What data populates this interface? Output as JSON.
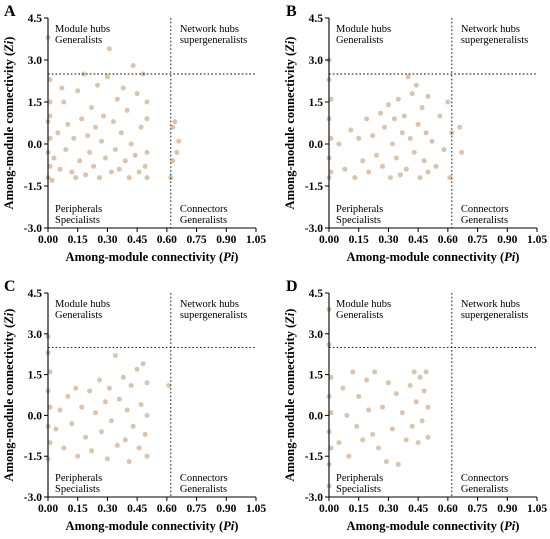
{
  "colors": {
    "point": "#dcc3ad",
    "axis": "#000000"
  },
  "chart_data": [
    {
      "type": "scatter",
      "panel": "A",
      "xlabel": "Among-module connectivity (Pi)",
      "ylabel": "Among-module connectivity (Zi)",
      "xlim": [
        0,
        1.05
      ],
      "ylim": [
        -3.0,
        4.5
      ],
      "xticks": [
        "0.00",
        "0.15",
        "0.30",
        "0.45",
        "0.60",
        "0.75",
        "0.90",
        "1.05"
      ],
      "yticks": [
        "-3.0",
        "-1.5",
        "0.0",
        "1.5",
        "3.0",
        "4.5"
      ],
      "thresholds": {
        "pi": 0.62,
        "zi": 2.5
      },
      "quadrants": {
        "top_left": [
          "Module hubs",
          "Generalists"
        ],
        "top_right": [
          "Network hubs",
          "supergeneralists"
        ],
        "bottom_left": [
          "Peripherals",
          "Specialists"
        ],
        "bottom_right": [
          "Connectors",
          "Generalists"
        ]
      },
      "points": [
        [
          0,
          3.8
        ],
        [
          0.01,
          2.3
        ],
        [
          0.01,
          1.5
        ],
        [
          0,
          0.8
        ],
        [
          0.01,
          0.2
        ],
        [
          0,
          -0.3
        ],
        [
          0.01,
          -0.8
        ],
        [
          0,
          -1.2
        ],
        [
          0.02,
          -1.3
        ],
        [
          0.01,
          1.0
        ],
        [
          0.03,
          -0.5
        ],
        [
          0.05,
          0.4
        ],
        [
          0.06,
          -0.9
        ],
        [
          0.08,
          1.5
        ],
        [
          0.09,
          -0.2
        ],
        [
          0.1,
          0.7
        ],
        [
          0.12,
          -1.0
        ],
        [
          0.13,
          0.2
        ],
        [
          0.15,
          1.9
        ],
        [
          0.16,
          -0.6
        ],
        [
          0.17,
          0.9
        ],
        [
          0.18,
          2.5
        ],
        [
          0.19,
          -1.1
        ],
        [
          0.2,
          0.3
        ],
        [
          0.21,
          -0.3
        ],
        [
          0.22,
          1.3
        ],
        [
          0.23,
          -0.8
        ],
        [
          0.24,
          0.6
        ],
        [
          0.25,
          2.1
        ],
        [
          0.26,
          -1.2
        ],
        [
          0.27,
          0.1
        ],
        [
          0.28,
          1.0
        ],
        [
          0.29,
          -0.5
        ],
        [
          0.3,
          2.4
        ],
        [
          0.31,
          3.4
        ],
        [
          0.32,
          -1.0
        ],
        [
          0.33,
          0.8
        ],
        [
          0.34,
          -0.2
        ],
        [
          0.35,
          1.6
        ],
        [
          0.36,
          -0.9
        ],
        [
          0.37,
          0.4
        ],
        [
          0.38,
          2.0
        ],
        [
          0.39,
          -0.6
        ],
        [
          0.4,
          1.2
        ],
        [
          0.41,
          -1.2
        ],
        [
          0.42,
          0.0
        ],
        [
          0.43,
          2.8
        ],
        [
          0.44,
          -0.4
        ],
        [
          0.45,
          1.8
        ],
        [
          0.46,
          -1.0
        ],
        [
          0.47,
          0.6
        ],
        [
          0.48,
          2.5
        ],
        [
          0.49,
          -0.8
        ],
        [
          0.5,
          0.9
        ],
        [
          0.5,
          -0.3
        ],
        [
          0.5,
          1.5
        ],
        [
          0.5,
          -1.2
        ],
        [
          0.63,
          0.6
        ],
        [
          0.64,
          0.8
        ],
        [
          0.65,
          -0.3
        ],
        [
          0.66,
          0.1
        ],
        [
          0.62,
          -1.2
        ],
        [
          0.63,
          -0.6
        ],
        [
          0.14,
          -1.2
        ],
        [
          0.07,
          2.0
        ]
      ]
    },
    {
      "type": "scatter",
      "panel": "B",
      "xlabel": "Among-module connectivity (Pi)",
      "ylabel": "Among-module connectivity (Zi)",
      "xlim": [
        0,
        1.05
      ],
      "ylim": [
        -3.0,
        4.5
      ],
      "xticks": [
        "0.00",
        "0.15",
        "0.30",
        "0.45",
        "0.60",
        "0.75",
        "0.90",
        "1.05"
      ],
      "yticks": [
        "-3.0",
        "-1.5",
        "0.0",
        "1.5",
        "3.0",
        "4.5"
      ],
      "thresholds": {
        "pi": 0.62,
        "zi": 2.5
      },
      "quadrants": {
        "top_left": [
          "Module hubs",
          "Generalists"
        ],
        "top_right": [
          "Network hubs",
          "supergeneralists"
        ],
        "bottom_left": [
          "Peripherals",
          "Specialists"
        ],
        "bottom_right": [
          "Connectors",
          "Generalists"
        ]
      },
      "points": [
        [
          0,
          3.0
        ],
        [
          0,
          2.3
        ],
        [
          0.01,
          1.6
        ],
        [
          0,
          0.9
        ],
        [
          0.01,
          0.2
        ],
        [
          0,
          -0.5
        ],
        [
          0.01,
          -1.0
        ],
        [
          0,
          -1.2
        ],
        [
          0.05,
          0.0
        ],
        [
          0.08,
          -0.9
        ],
        [
          0.11,
          0.5
        ],
        [
          0.13,
          -1.2
        ],
        [
          0.15,
          0.2
        ],
        [
          0.17,
          -0.6
        ],
        [
          0.19,
          0.9
        ],
        [
          0.2,
          -1.0
        ],
        [
          0.22,
          0.3
        ],
        [
          0.24,
          -0.4
        ],
        [
          0.26,
          1.1
        ],
        [
          0.27,
          -0.8
        ],
        [
          0.28,
          0.6
        ],
        [
          0.3,
          1.4
        ],
        [
          0.31,
          -1.2
        ],
        [
          0.32,
          0.0
        ],
        [
          0.33,
          0.9
        ],
        [
          0.34,
          -0.5
        ],
        [
          0.35,
          1.6
        ],
        [
          0.36,
          -1.1
        ],
        [
          0.37,
          0.4
        ],
        [
          0.38,
          1.0
        ],
        [
          0.39,
          -0.9
        ],
        [
          0.4,
          2.4
        ],
        [
          0.41,
          0.2
        ],
        [
          0.42,
          1.8
        ],
        [
          0.43,
          -0.3
        ],
        [
          0.44,
          2.1
        ],
        [
          0.45,
          0.7
        ],
        [
          0.46,
          -1.2
        ],
        [
          0.47,
          1.3
        ],
        [
          0.48,
          -0.6
        ],
        [
          0.49,
          0.4
        ],
        [
          0.5,
          1.7
        ],
        [
          0.5,
          -1.0
        ],
        [
          0.52,
          0.1
        ],
        [
          0.54,
          -0.8
        ],
        [
          0.56,
          1.0
        ],
        [
          0.58,
          -0.2
        ],
        [
          0.6,
          1.5
        ],
        [
          0.61,
          -1.2
        ],
        [
          0.62,
          0.4
        ],
        [
          0.66,
          0.6
        ],
        [
          0.67,
          -0.3
        ]
      ]
    },
    {
      "type": "scatter",
      "panel": "C",
      "xlabel": "Among-module connectivity (Pi)",
      "ylabel": "Among-module connectivity (Zi)",
      "xlim": [
        0,
        1.05
      ],
      "ylim": [
        -3.0,
        4.5
      ],
      "xticks": [
        "0.00",
        "0.15",
        "0.30",
        "0.45",
        "0.60",
        "0.75",
        "0.90",
        "1.05"
      ],
      "yticks": [
        "-3.0",
        "-1.5",
        "0.0",
        "1.5",
        "3.0",
        "4.5"
      ],
      "thresholds": {
        "pi": 0.62,
        "zi": 2.5
      },
      "quadrants": {
        "top_left": [
          "Module hubs",
          "Generalists"
        ],
        "top_right": [
          "Network hubs",
          "supergeneralists"
        ],
        "bottom_left": [
          "Peripherals",
          "Specialists"
        ],
        "bottom_right": [
          "Connectors",
          "Generalists"
        ]
      },
      "points": [
        [
          0,
          2.9
        ],
        [
          0,
          2.3
        ],
        [
          0.01,
          1.6
        ],
        [
          0,
          0.9
        ],
        [
          0.01,
          0.3
        ],
        [
          0,
          -0.4
        ],
        [
          0.01,
          -1.0
        ],
        [
          0,
          -1.6
        ],
        [
          0.04,
          -0.5
        ],
        [
          0.06,
          0.2
        ],
        [
          0.08,
          -1.2
        ],
        [
          0.1,
          0.7
        ],
        [
          0.12,
          -0.3
        ],
        [
          0.14,
          1.0
        ],
        [
          0.15,
          -1.5
        ],
        [
          0.17,
          0.3
        ],
        [
          0.19,
          -0.8
        ],
        [
          0.21,
          0.9
        ],
        [
          0.22,
          -1.3
        ],
        [
          0.24,
          0.1
        ],
        [
          0.26,
          1.3
        ],
        [
          0.27,
          -0.6
        ],
        [
          0.29,
          0.5
        ],
        [
          0.3,
          -1.6
        ],
        [
          0.31,
          1.0
        ],
        [
          0.32,
          -0.2
        ],
        [
          0.34,
          2.2
        ],
        [
          0.35,
          -1.1
        ],
        [
          0.36,
          0.6
        ],
        [
          0.38,
          1.4
        ],
        [
          0.39,
          -0.9
        ],
        [
          0.4,
          0.2
        ],
        [
          0.41,
          -1.7
        ],
        [
          0.42,
          1.1
        ],
        [
          0.43,
          -0.4
        ],
        [
          0.45,
          1.7
        ],
        [
          0.46,
          -1.2
        ],
        [
          0.47,
          0.4
        ],
        [
          0.48,
          1.9
        ],
        [
          0.49,
          -0.7
        ],
        [
          0.5,
          1.2
        ],
        [
          0.5,
          -1.5
        ],
        [
          0.5,
          0.0
        ],
        [
          0.61,
          1.1
        ]
      ]
    },
    {
      "type": "scatter",
      "panel": "D",
      "xlabel": "Among-module connectivity (Pi)",
      "ylabel": "Among-module connectivity (Zi)",
      "xlim": [
        0,
        1.05
      ],
      "ylim": [
        -3.0,
        4.5
      ],
      "xticks": [
        "0.00",
        "0.15",
        "0.30",
        "0.45",
        "0.60",
        "0.75",
        "0.90",
        "1.05"
      ],
      "yticks": [
        "-3.0",
        "-1.5",
        "0.0",
        "1.5",
        "3.0",
        "4.5"
      ],
      "thresholds": {
        "pi": 0.62,
        "zi": 2.5
      },
      "quadrants": {
        "top_left": [
          "Module hubs",
          "Generalists"
        ],
        "top_right": [
          "Network hubs",
          "supergeneralists"
        ],
        "bottom_left": [
          "Peripherals",
          "Specialists"
        ],
        "bottom_right": [
          "Connectors",
          "Generalists"
        ]
      },
      "points": [
        [
          0,
          3.9
        ],
        [
          0,
          2.6
        ],
        [
          0.01,
          1.4
        ],
        [
          0,
          0.7
        ],
        [
          0.01,
          0.1
        ],
        [
          0,
          -0.6
        ],
        [
          0.01,
          -1.2
        ],
        [
          0,
          -1.8
        ],
        [
          0,
          -2.6
        ],
        [
          0.05,
          -1.0
        ],
        [
          0.07,
          1.0
        ],
        [
          0.09,
          0.0
        ],
        [
          0.1,
          -1.5
        ],
        [
          0.12,
          1.6
        ],
        [
          0.14,
          -0.4
        ],
        [
          0.15,
          0.7
        ],
        [
          0.17,
          -0.9
        ],
        [
          0.19,
          1.3
        ],
        [
          0.2,
          0.2
        ],
        [
          0.22,
          -0.7
        ],
        [
          0.23,
          1.6
        ],
        [
          0.25,
          -1.2
        ],
        [
          0.27,
          0.3
        ],
        [
          0.29,
          -1.7
        ],
        [
          0.3,
          1.2
        ],
        [
          0.32,
          -0.5
        ],
        [
          0.34,
          0.8
        ],
        [
          0.35,
          -1.8
        ],
        [
          0.37,
          0.1
        ],
        [
          0.39,
          -0.9
        ],
        [
          0.41,
          1.1
        ],
        [
          0.42,
          -0.4
        ],
        [
          0.43,
          1.6
        ],
        [
          0.44,
          0.5
        ],
        [
          0.45,
          -1.0
        ],
        [
          0.46,
          1.4
        ],
        [
          0.47,
          -0.2
        ],
        [
          0.48,
          0.9
        ],
        [
          0.49,
          1.6
        ],
        [
          0.5,
          -0.8
        ],
        [
          0.5,
          0.3
        ]
      ]
    }
  ]
}
